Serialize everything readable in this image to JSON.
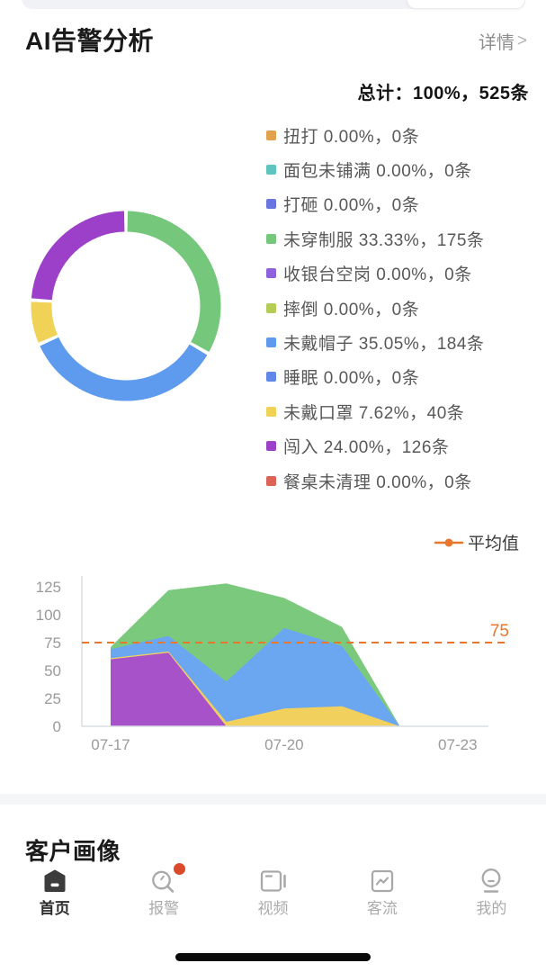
{
  "header": {
    "title": "AI告警分析",
    "detail_link": "详情",
    "chevron": ">"
  },
  "summary": {
    "total_label": "总计：100%，525条"
  },
  "colors": {
    "accent_orange": "#E8772E",
    "badge_red": "#DB4B2B",
    "active_tab": "#2E2E2E",
    "inactive_tab": "#ABABAB",
    "axis_gray": "#DADDE2",
    "tick_gray": "#9A9A9A"
  },
  "chart_data": [
    {
      "type": "pie",
      "donut": true,
      "title": "总计：100%，525条",
      "unit": "条",
      "legend_position": "right",
      "segments": [
        {
          "label": "扭打",
          "percent": 0,
          "count": 0,
          "color": "#E2A14D"
        },
        {
          "label": "面包未铺满",
          "percent": 0,
          "count": 0,
          "color": "#5EC4BE"
        },
        {
          "label": "打砸",
          "percent": 0,
          "count": 0,
          "color": "#6A76DF"
        },
        {
          "label": "未穿制服",
          "percent": 33.33,
          "count": 175,
          "color": "#74C77B"
        },
        {
          "label": "收银台空岗",
          "percent": 0,
          "count": 0,
          "color": "#8F62DD"
        },
        {
          "label": "摔倒",
          "percent": 0,
          "count": 0,
          "color": "#B4CC56"
        },
        {
          "label": "未戴帽子",
          "percent": 35.05,
          "count": 184,
          "color": "#5E9BEF"
        },
        {
          "label": "睡眠",
          "percent": 0,
          "count": 0,
          "color": "#6188E8"
        },
        {
          "label": "未戴口罩",
          "percent": 7.62,
          "count": 40,
          "color": "#EFD256"
        },
        {
          "label": "闯入",
          "percent": 24,
          "count": 126,
          "color": "#9C3FC9"
        },
        {
          "label": "餐桌未清理",
          "percent": 0,
          "count": 0,
          "color": "#DB6457"
        }
      ]
    },
    {
      "type": "area",
      "stacked": true,
      "x": [
        "07-17",
        "07-18",
        "07-19",
        "07-20",
        "07-21",
        "07-22",
        "07-23"
      ],
      "x_axis_ticks": [
        "07-17",
        "07-20",
        "07-23"
      ],
      "yticks": [
        0,
        25,
        50,
        75,
        100,
        125
      ],
      "ylim": [
        0,
        130
      ],
      "grid": false,
      "series": [
        {
          "name": "闯入",
          "color": "#A852C9",
          "values": [
            60,
            66,
            0,
            0,
            0,
            0,
            0
          ]
        },
        {
          "name": "未戴口罩",
          "color": "#F2D05E",
          "values": [
            1,
            1,
            4,
            16,
            18,
            0,
            0
          ]
        },
        {
          "name": "未戴帽子",
          "color": "#6BA7F1",
          "values": [
            8,
            14,
            36,
            72,
            54,
            0,
            0
          ]
        },
        {
          "name": "未穿制服",
          "color": "#7BC97D",
          "values": [
            2,
            41,
            88,
            27,
            17,
            0,
            0
          ]
        }
      ],
      "average_line": {
        "label": "平均值",
        "value": 75,
        "color": "#E8772E",
        "style": "dashed"
      }
    }
  ],
  "portrait_section": {
    "title": "客户画像"
  },
  "tab_bar": {
    "items": [
      {
        "id": "home",
        "label": "首页",
        "icon": "home-icon",
        "active": true,
        "badge": false
      },
      {
        "id": "alarm",
        "label": "报警",
        "icon": "alarm-search-icon",
        "active": false,
        "badge": true
      },
      {
        "id": "video",
        "label": "视频",
        "icon": "video-icon",
        "active": false,
        "badge": false
      },
      {
        "id": "traffic",
        "label": "客流",
        "icon": "traffic-chart-icon",
        "active": false,
        "badge": false
      },
      {
        "id": "mine",
        "label": "我的",
        "icon": "profile-icon",
        "active": false,
        "badge": false
      }
    ]
  }
}
